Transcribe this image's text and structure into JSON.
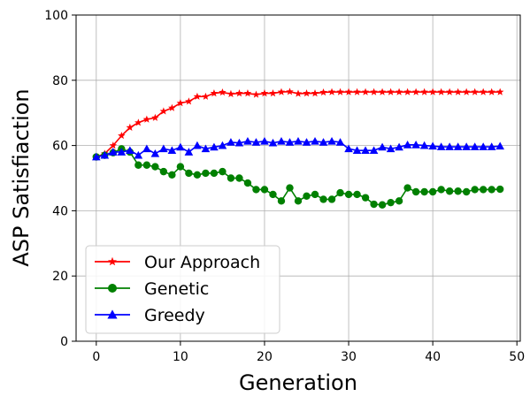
{
  "chart_data": {
    "type": "line",
    "title": "",
    "xlabel": "Generation",
    "ylabel": "ASP Satisfiaction",
    "xlim": [
      -2.4,
      50.4
    ],
    "ylim": [
      0,
      100
    ],
    "xticks": [
      0,
      10,
      20,
      30,
      40,
      50
    ],
    "yticks": [
      0,
      20,
      40,
      60,
      80,
      100
    ],
    "grid": true,
    "legend": "lower-left",
    "x": [
      0,
      1,
      2,
      3,
      4,
      5,
      6,
      7,
      8,
      9,
      10,
      11,
      12,
      13,
      14,
      15,
      16,
      17,
      18,
      19,
      20,
      21,
      22,
      23,
      24,
      25,
      26,
      27,
      28,
      29,
      30,
      31,
      32,
      33,
      34,
      35,
      36,
      37,
      38,
      39,
      40,
      41,
      42,
      43,
      44,
      45,
      46,
      47,
      48
    ],
    "series": [
      {
        "name": "Our Approach",
        "color": "#ff0000",
        "marker": "star",
        "values": [
          56.5,
          57.5,
          60,
          63,
          65.5,
          67,
          68,
          68.5,
          70.5,
          71.5,
          73,
          73.5,
          75,
          75,
          76,
          76.3,
          75.8,
          76,
          76,
          75.6,
          76,
          76,
          76.4,
          76.5,
          75.9,
          76,
          76,
          76.3,
          76.4,
          76.4,
          76.4,
          76.4,
          76.4,
          76.4,
          76.4,
          76.4,
          76.4,
          76.4,
          76.4,
          76.4,
          76.4,
          76.4,
          76.4,
          76.4,
          76.4,
          76.4,
          76.4,
          76.4,
          76.4
        ]
      },
      {
        "name": "Genetic",
        "color": "#008000",
        "marker": "circle",
        "values": [
          56.5,
          57,
          57.8,
          59,
          58,
          54,
          54,
          53.5,
          52,
          51,
          53.5,
          51.5,
          51,
          51.5,
          51.5,
          52,
          50,
          50,
          48.5,
          46.5,
          46.5,
          45,
          43,
          47,
          43,
          44.5,
          45,
          43.5,
          43.5,
          45.5,
          45,
          45,
          44,
          42,
          41.8,
          42.5,
          43,
          47,
          45.8,
          45.8,
          45.8,
          46.5,
          46,
          46,
          45.8,
          46.5,
          46.5,
          46.5,
          46.6
        ]
      },
      {
        "name": "Greedy",
        "color": "#0000ff",
        "marker": "triangle",
        "values": [
          56.5,
          57,
          58,
          58,
          58.5,
          57,
          59,
          57.5,
          59,
          58.5,
          59.5,
          58,
          60,
          59,
          59.5,
          60,
          61,
          60.8,
          61.3,
          61,
          61.3,
          60.8,
          61.3,
          61,
          61.3,
          61,
          61.3,
          61,
          61.3,
          61,
          59,
          58.5,
          58.5,
          58.5,
          59.5,
          59,
          59.5,
          60.2,
          60.2,
          60,
          59.8,
          59.6,
          59.6,
          59.6,
          59.6,
          59.6,
          59.6,
          59.6,
          59.8
        ]
      }
    ]
  }
}
